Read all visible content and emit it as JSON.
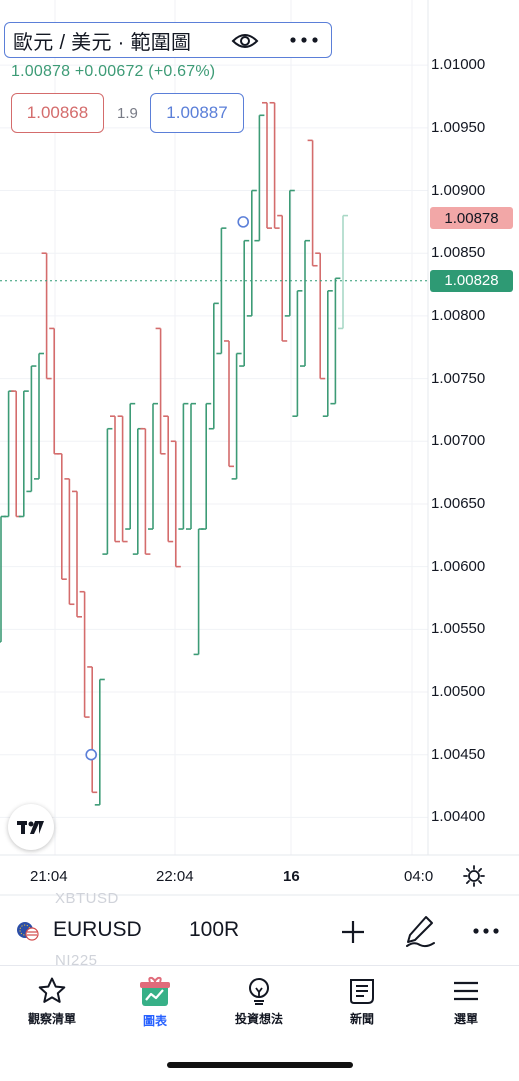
{
  "header": {
    "title": "歐元 / 美元 · 範圍圖",
    "change": "1.00878 +0.00672 (+0.67%)",
    "bid": "1.00868",
    "spread": "1.9",
    "ask": "1.00887",
    "icons": [
      "eye-icon",
      "more-dots-icon"
    ]
  },
  "price_axis": {
    "labels": [
      "1.01000",
      "1.00950",
      "1.00900",
      "1.00850",
      "1.00800",
      "1.00750",
      "1.00700",
      "1.00650",
      "1.00600",
      "1.00550",
      "1.00500",
      "1.00450",
      "1.00400"
    ],
    "last_price_tag": "1.00878",
    "current_price_tag": "1.00828"
  },
  "time_axis": {
    "labels": [
      "21:04",
      "22:04",
      "16",
      "04:0"
    ]
  },
  "ghost_symbols": [
    "XBTUSD",
    "NI225"
  ],
  "symbol_bar": {
    "symbol": "EURUSD",
    "interval": "100R",
    "icons": [
      "flag-icon",
      "plus-icon",
      "pen-icon",
      "more-icon"
    ]
  },
  "nav": {
    "items": [
      {
        "label": "觀察清單",
        "icon": "star-icon",
        "active": false
      },
      {
        "label": "圖表",
        "icon": "chart-icon",
        "active": true
      },
      {
        "label": "投資想法",
        "icon": "lightbulb-icon",
        "active": false
      },
      {
        "label": "新聞",
        "icon": "news-icon",
        "active": false
      },
      {
        "label": "選單",
        "icon": "menu-icon",
        "active": false
      }
    ]
  },
  "colors": {
    "up": "#3d9b76",
    "down": "#d46c6c",
    "accent": "#2962ff",
    "outline": "#5b7fd8"
  },
  "chart_data": {
    "type": "bar",
    "style": "range-bars",
    "ylim": [
      1.0037,
      1.0104
    ],
    "grid": true,
    "bars": [
      {
        "d": "up",
        "o": 1.0054,
        "c": 1.0064
      },
      {
        "d": "up",
        "o": 1.0064,
        "c": 1.0074
      },
      {
        "d": "down",
        "o": 1.0074,
        "c": 1.0064
      },
      {
        "d": "up",
        "o": 1.0064,
        "c": 1.0074
      },
      {
        "d": "up",
        "o": 1.0066,
        "c": 1.0076
      },
      {
        "d": "up",
        "o": 1.0067,
        "c": 1.0077
      },
      {
        "d": "down",
        "o": 1.0085,
        "c": 1.0075
      },
      {
        "d": "down",
        "o": 1.0079,
        "c": 1.0069
      },
      {
        "d": "down",
        "o": 1.0069,
        "c": 1.0059
      },
      {
        "d": "down",
        "o": 1.0067,
        "c": 1.0057
      },
      {
        "d": "down",
        "o": 1.0066,
        "c": 1.0056
      },
      {
        "d": "down",
        "o": 1.0058,
        "c": 1.0048
      },
      {
        "d": "down",
        "o": 1.0052,
        "c": 1.0042
      },
      {
        "d": "up",
        "o": 1.0041,
        "c": 1.0051
      },
      {
        "d": "up",
        "o": 1.0061,
        "c": 1.0071
      },
      {
        "d": "down",
        "o": 1.0072,
        "c": 1.0062
      },
      {
        "d": "down",
        "o": 1.0072,
        "c": 1.0062
      },
      {
        "d": "up",
        "o": 1.0063,
        "c": 1.0073
      },
      {
        "d": "up",
        "o": 1.0061,
        "c": 1.0071
      },
      {
        "d": "down",
        "o": 1.0071,
        "c": 1.0061
      },
      {
        "d": "up",
        "o": 1.0063,
        "c": 1.0073
      },
      {
        "d": "down",
        "o": 1.0079,
        "c": 1.0069
      },
      {
        "d": "down",
        "o": 1.0072,
        "c": 1.0062
      },
      {
        "d": "down",
        "o": 1.007,
        "c": 1.006
      },
      {
        "d": "up",
        "o": 1.0063,
        "c": 1.0073
      },
      {
        "d": "up",
        "o": 1.0063,
        "c": 1.0073
      },
      {
        "d": "up",
        "o": 1.0053,
        "c": 1.0063
      },
      {
        "d": "up",
        "o": 1.0063,
        "c": 1.0073
      },
      {
        "d": "up",
        "o": 1.0071,
        "c": 1.0081
      },
      {
        "d": "up",
        "o": 1.0077,
        "c": 1.0087
      },
      {
        "d": "down",
        "o": 1.0078,
        "c": 1.0068
      },
      {
        "d": "up",
        "o": 1.0067,
        "c": 1.0077
      },
      {
        "d": "up",
        "o": 1.0076,
        "c": 1.0086
      },
      {
        "d": "up",
        "o": 1.008,
        "c": 1.009
      },
      {
        "d": "up",
        "o": 1.0086,
        "c": 1.0096
      },
      {
        "d": "down",
        "o": 1.0097,
        "c": 1.0087
      },
      {
        "d": "down",
        "o": 1.0097,
        "c": 1.0087
      },
      {
        "d": "down",
        "o": 1.0088,
        "c": 1.0078
      },
      {
        "d": "up",
        "o": 1.008,
        "c": 1.009
      },
      {
        "d": "up",
        "o": 1.0072,
        "c": 1.0082
      },
      {
        "d": "up",
        "o": 1.0076,
        "c": 1.0086
      },
      {
        "d": "down",
        "o": 1.0094,
        "c": 1.0084
      },
      {
        "d": "down",
        "o": 1.0085,
        "c": 1.0075
      },
      {
        "d": "up",
        "o": 1.0072,
        "c": 1.0082
      },
      {
        "d": "up",
        "o": 1.0073,
        "c": 1.0083
      },
      {
        "d": "up",
        "o": 1.0079,
        "c": 1.0088
      }
    ],
    "markers": [
      {
        "bar": 12,
        "price": 1.0045
      },
      {
        "bar": 32,
        "price": 1.00875
      }
    ],
    "current_price": 1.00828
  }
}
